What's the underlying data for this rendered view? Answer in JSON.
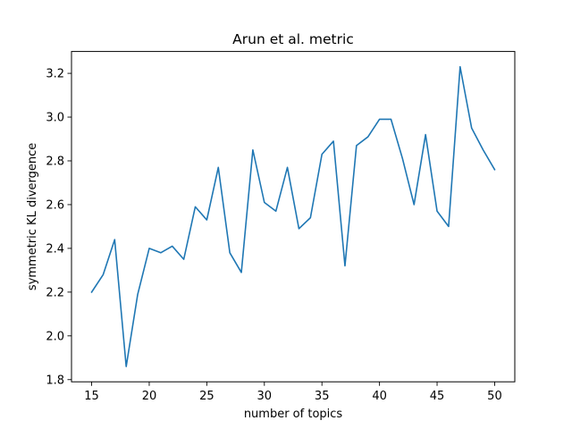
{
  "chart_data": {
    "type": "line",
    "title": "Arun et al. metric",
    "xlabel": "number of topics",
    "ylabel": "symmetric KL divergence",
    "xlim": [
      13.25,
      51.75
    ],
    "ylim": [
      1.79,
      3.3
    ],
    "xticks": [
      15,
      20,
      25,
      30,
      35,
      40,
      45,
      50
    ],
    "yticks": [
      1.8,
      2.0,
      2.2,
      2.4,
      2.6,
      2.8,
      3.0,
      3.2
    ],
    "ytick_labels": [
      "1.8",
      "2.0",
      "2.2",
      "2.4",
      "2.6",
      "2.8",
      "3.0",
      "3.2"
    ],
    "grid": false,
    "legend": "none",
    "line_color": "#1f77b4",
    "series": [
      {
        "x": [
          15,
          16,
          17,
          18,
          19,
          20,
          21,
          22,
          23,
          24,
          25,
          26,
          27,
          28,
          29,
          30,
          31,
          32,
          33,
          34,
          35,
          36,
          37,
          38,
          39,
          40,
          41,
          42,
          43,
          44,
          45,
          46,
          47,
          48,
          49,
          50
        ],
        "y": [
          2.2,
          2.28,
          2.44,
          1.86,
          2.19,
          2.4,
          2.38,
          2.41,
          2.35,
          2.59,
          2.53,
          2.77,
          2.38,
          2.29,
          2.85,
          2.61,
          2.57,
          2.77,
          2.49,
          2.54,
          2.83,
          2.89,
          2.32,
          2.87,
          2.91,
          2.99,
          2.99,
          2.81,
          2.6,
          2.92,
          2.57,
          2.5,
          3.23,
          2.95,
          2.85,
          2.76
        ]
      }
    ]
  }
}
